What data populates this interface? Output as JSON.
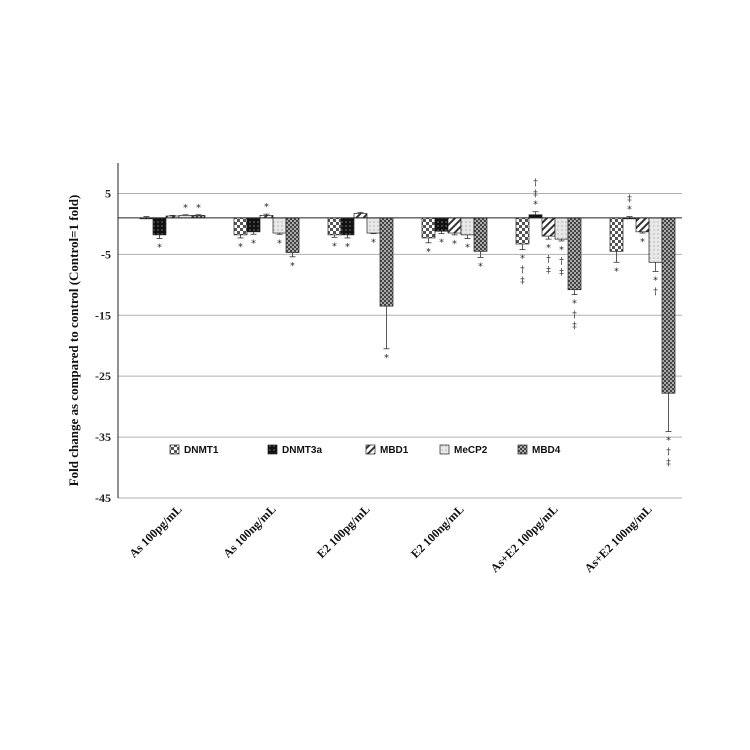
{
  "chart_data": {
    "type": "bar",
    "ylabel": "Fold change as compared to control (Control=1 fold)",
    "ylim": [
      -45,
      10
    ],
    "yticks": [
      5,
      -5,
      -15,
      -25,
      -35,
      -45
    ],
    "grid": true,
    "legend_position": "inside-bottom",
    "categories": [
      "As 100pg/mL",
      "As 100ng/mL",
      "E2 100pg/mL",
      "E2 100ng/mL",
      "As+E2 100pg/mL",
      "As+E2 100ng/mL"
    ],
    "series": [
      {
        "name": "DNMT1",
        "pattern": "checker-small",
        "values": [
          1,
          -1.8,
          -1.8,
          -2.3,
          -3.3,
          -4.5
        ],
        "errors": [
          0.2,
          0.5,
          0.4,
          0.8,
          0.9,
          1.8
        ],
        "annotations": [
          "",
          "*",
          "*",
          "*",
          "*\n†\n‡",
          "*"
        ]
      },
      {
        "name": "DNMT3a",
        "pattern": "black-dots",
        "values": [
          -1.8,
          -1.3,
          -1.8,
          -1.2,
          1.5,
          1.0
        ],
        "errors": [
          0.6,
          0.4,
          0.5,
          0.4,
          0.5,
          0.2
        ],
        "annotations": [
          "*",
          "*",
          "*",
          "*",
          "†\n‡\n*",
          "‡\n*"
        ]
      },
      {
        "name": "MBD1",
        "pattern": "diagonal",
        "values": [
          1.3,
          1.4,
          1.7,
          -1.5,
          -2.0,
          -1.3
        ],
        "errors": [
          0.1,
          0.2,
          0.2,
          0.3,
          0.5,
          0.2
        ],
        "annotations": [
          "",
          "*",
          "",
          "*",
          "*\n†\n‡",
          "*"
        ]
      },
      {
        "name": "MeCP2",
        "pattern": "light-dots",
        "values": [
          1.4,
          -1.5,
          -1.5,
          -1.8,
          -2.5,
          -6.3
        ],
        "errors": [
          0.1,
          0.2,
          0.1,
          0.6,
          0.3,
          1.5
        ],
        "annotations": [
          "*",
          "*",
          "*",
          "*",
          "*\n†\n‡",
          "*\n†"
        ]
      },
      {
        "name": "MBD4",
        "pattern": "dense-checker",
        "values": [
          1.4,
          -4.7,
          -13.5,
          -4.5,
          -10.8,
          -27.8
        ],
        "errors": [
          0.1,
          0.7,
          7.0,
          1.0,
          0.8,
          6.3
        ],
        "annotations": [
          "*",
          "*",
          "*",
          "*",
          "*\n†\n‡",
          "*\n†\n‡"
        ]
      }
    ]
  }
}
